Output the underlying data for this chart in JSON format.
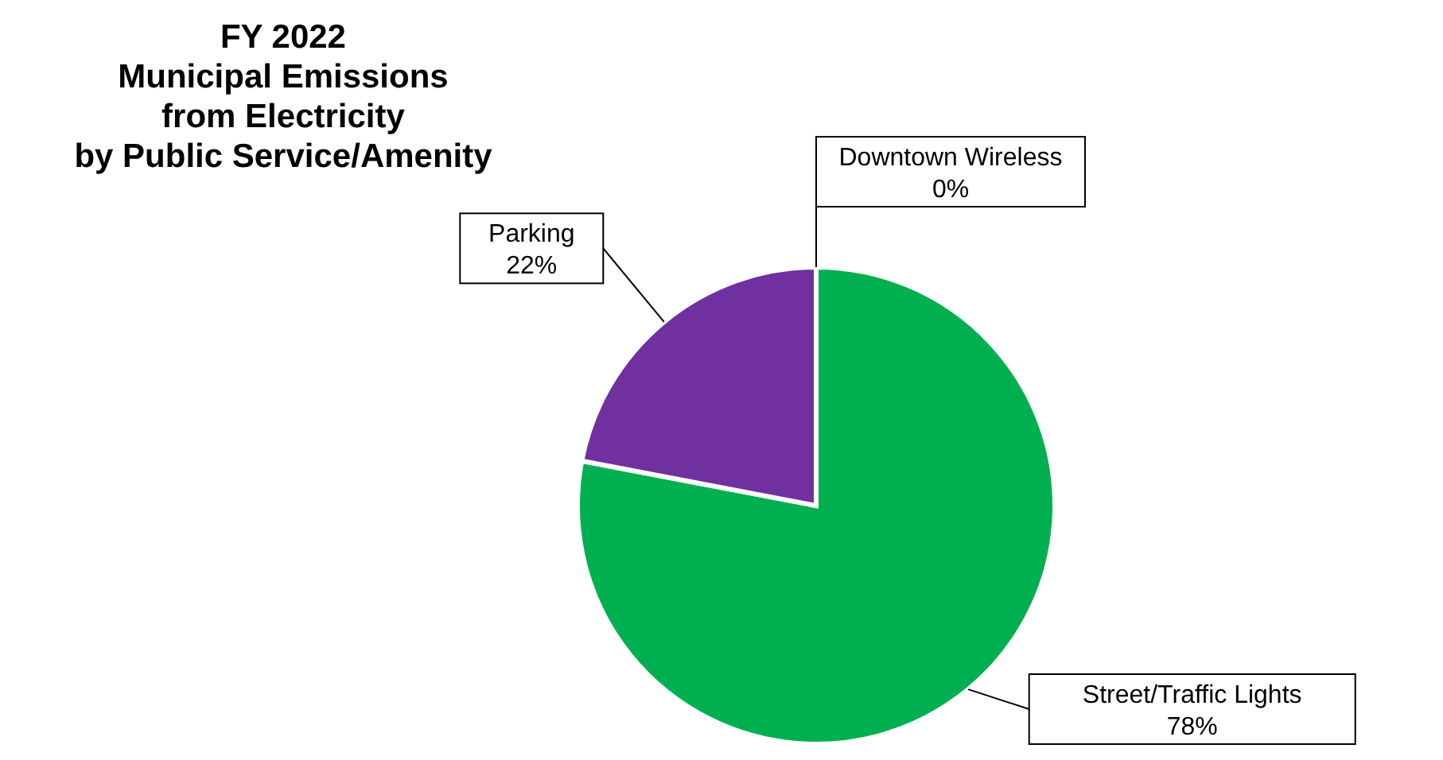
{
  "chart_data": {
    "type": "pie",
    "title": "FY 2022\nMunicipal Emissions\nfrom Electricity\nby Public Service/Amenity",
    "categories": [
      "Street/Traffic Lights",
      "Parking",
      "Downtown Wireless"
    ],
    "values": [
      78,
      22,
      0
    ],
    "colors": [
      "#00b050",
      "#7030a0",
      "#4472c4"
    ],
    "value_labels": [
      "78%",
      "22%",
      "0%"
    ]
  }
}
